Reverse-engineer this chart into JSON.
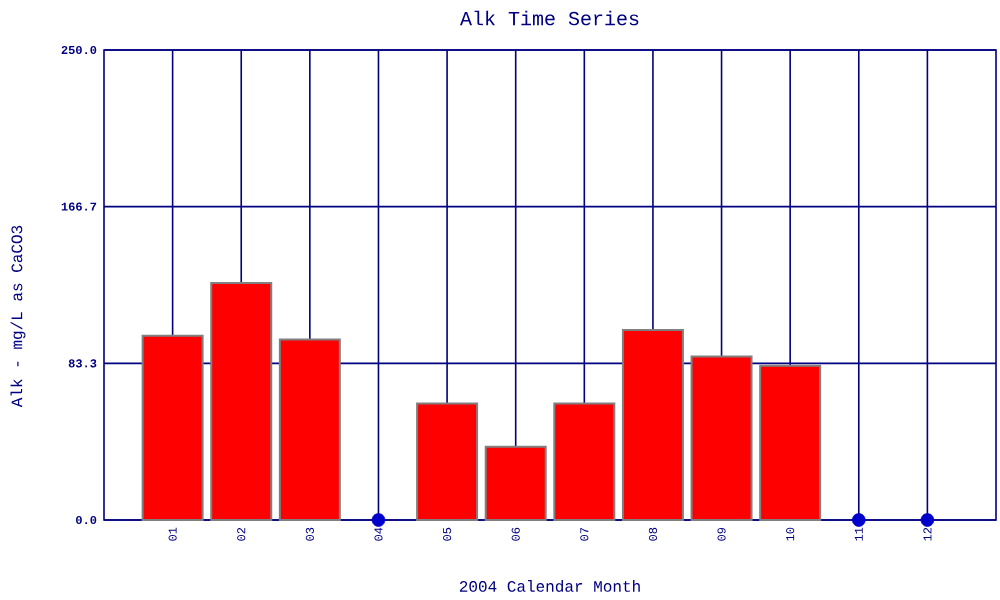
{
  "chart_data": {
    "type": "bar",
    "title": "Alk Time Series",
    "xlabel": "2004 Calendar Month",
    "ylabel": "Alk - mg/L as CaCO3",
    "categories": [
      "01",
      "02",
      "03",
      "04",
      "05",
      "06",
      "07",
      "08",
      "09",
      "10",
      "11",
      "12"
    ],
    "series": [
      {
        "color": "#ff0000",
        "values": [
          98,
          126,
          96,
          null,
          62,
          39,
          62,
          101,
          87,
          82,
          null,
          null
        ]
      },
      {
        "type": "scatter",
        "color": "#0000cc",
        "marker": "circle",
        "x": [
          "04",
          "11",
          "12"
        ],
        "values": [
          0,
          0,
          0
        ]
      }
    ],
    "ylim": [
      0,
      250
    ],
    "yticks": [
      {
        "value": 0,
        "label": "0.0"
      },
      83.3,
      166.7,
      {
        "value": 250,
        "label": "250.0"
      }
    ],
    "grid": true
  }
}
